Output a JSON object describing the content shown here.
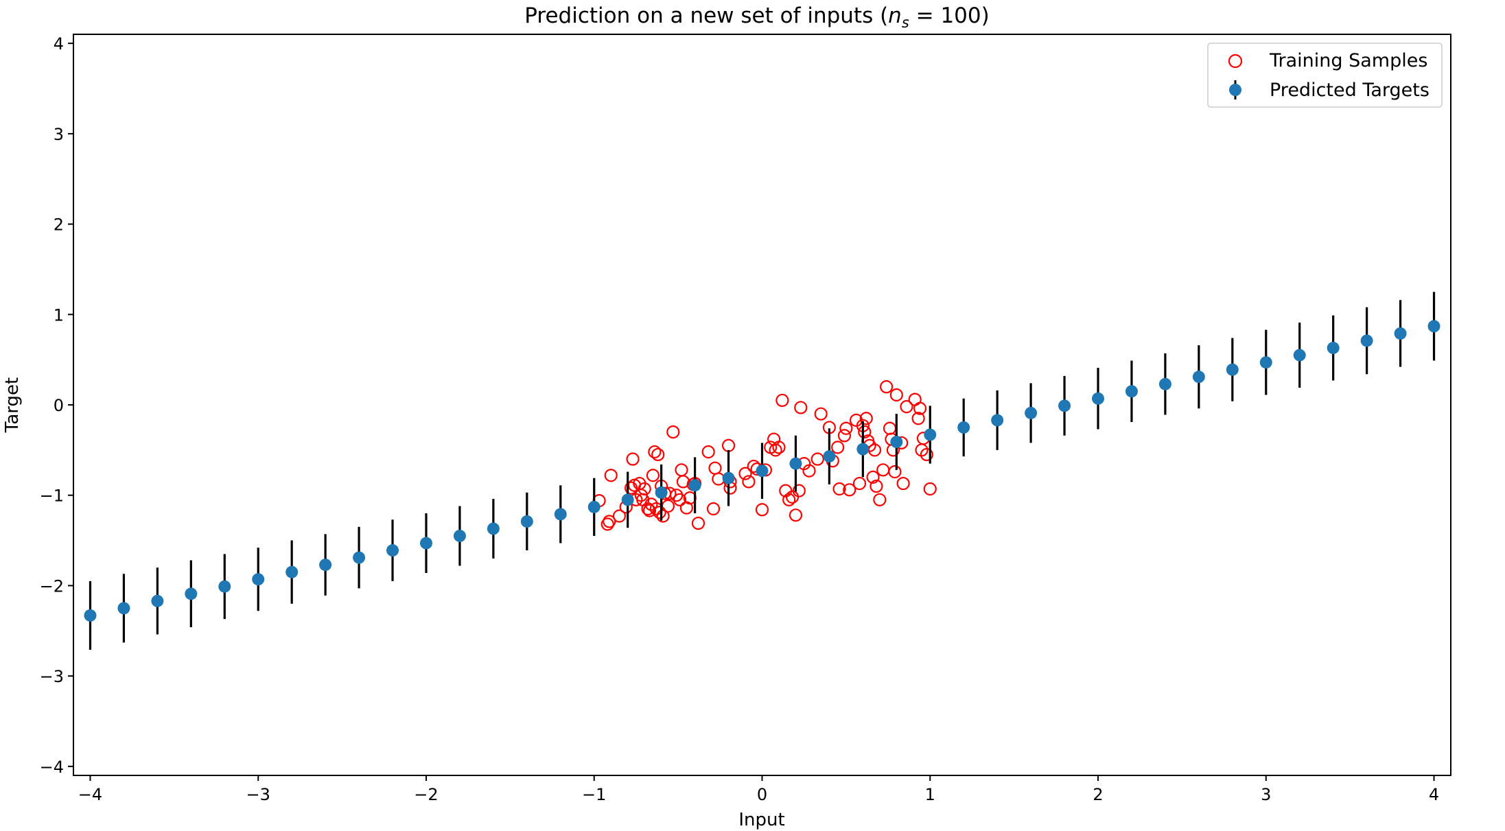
{
  "chart_data": {
    "type": "scatter",
    "title": "Prediction on a new set of inputs (",
    "title_math_var": "n",
    "title_math_sub": "s",
    "title_math_rest": " = 100)",
    "title_close": "",
    "xlabel": "Input",
    "ylabel": "Target",
    "xlim": [
      -4.1,
      4.1
    ],
    "ylim": [
      -4.1,
      4.1
    ],
    "x_ticks": [
      -4,
      -3,
      -2,
      -1,
      0,
      1,
      2,
      3,
      4
    ],
    "y_ticks": [
      -4,
      -3,
      -2,
      -1,
      0,
      1,
      2,
      3,
      4
    ],
    "x_tick_labels": [
      "−4",
      "−3",
      "−2",
      "−1",
      "0",
      "1",
      "2",
      "3",
      "4"
    ],
    "y_tick_labels": [
      "−4",
      "−3",
      "−2",
      "−1",
      "0",
      "1",
      "2",
      "3",
      "4"
    ],
    "grid": false,
    "legend_position": "top-right",
    "series": [
      {
        "name": "Training Samples",
        "marker": "open-circle",
        "color": "#ff0000",
        "x": [
          -0.91,
          -0.92,
          -0.9,
          -0.85,
          -0.81,
          -0.78,
          -0.77,
          -0.76,
          -0.75,
          -0.73,
          -0.72,
          -0.71,
          -0.7,
          -0.68,
          -0.67,
          -0.66,
          -0.65,
          -0.64,
          -0.62,
          -0.61,
          -0.6,
          -0.59,
          -0.58,
          -0.56,
          -0.55,
          -0.53,
          -0.51,
          -0.49,
          -0.48,
          -0.47,
          -0.45,
          -0.43,
          -0.41,
          -0.4,
          -0.38,
          -0.32,
          -0.29,
          -0.28,
          -0.26,
          -0.2,
          -0.19,
          -0.19,
          -0.1,
          -0.08,
          -0.05,
          -0.03,
          0.0,
          0.02,
          0.05,
          0.07,
          0.08,
          0.1,
          0.12,
          0.14,
          0.16,
          0.18,
          0.2,
          0.22,
          0.23,
          0.25,
          0.28,
          0.33,
          0.35,
          0.4,
          0.42,
          0.45,
          0.46,
          0.49,
          0.5,
          0.52,
          0.56,
          0.58,
          0.6,
          0.61,
          0.62,
          0.63,
          0.64,
          0.66,
          0.67,
          0.68,
          0.7,
          0.72,
          0.74,
          0.76,
          0.77,
          0.78,
          0.79,
          0.8,
          0.83,
          0.84,
          0.86,
          0.91,
          0.93,
          0.94,
          0.95,
          0.96,
          0.98,
          1.0,
          -0.97,
          -0.63
        ],
        "y": [
          -1.29,
          -1.32,
          -0.78,
          -1.23,
          -1.13,
          -0.92,
          -0.6,
          -0.89,
          -1.05,
          -0.87,
          -1.0,
          -1.05,
          -0.93,
          -1.15,
          -1.17,
          -1.1,
          -0.78,
          -0.52,
          -0.55,
          -1.19,
          -0.9,
          -1.23,
          -0.98,
          -1.12,
          -0.98,
          -0.3,
          -1.0,
          -1.05,
          -0.72,
          -0.85,
          -1.14,
          -1.03,
          -0.88,
          -0.87,
          -1.31,
          -0.52,
          -1.15,
          -0.7,
          -0.82,
          -0.45,
          -0.92,
          -0.85,
          -0.76,
          -0.85,
          -0.68,
          -0.71,
          -1.16,
          -0.72,
          -0.47,
          -0.38,
          -0.5,
          -0.47,
          0.05,
          -0.95,
          -1.05,
          -1.02,
          -1.22,
          -0.95,
          -0.03,
          -0.65,
          -0.73,
          -0.6,
          -0.1,
          -0.25,
          -0.62,
          -0.47,
          -0.93,
          -0.34,
          -0.26,
          -0.94,
          -0.17,
          -0.87,
          -0.23,
          -0.3,
          -0.15,
          -0.4,
          -0.45,
          -0.8,
          -0.5,
          -0.9,
          -1.05,
          -0.72,
          0.2,
          -0.26,
          -0.38,
          -0.5,
          -0.74,
          0.11,
          -0.42,
          -0.87,
          -0.02,
          0.06,
          -0.15,
          -0.04,
          -0.5,
          -0.37,
          -0.55,
          -0.93,
          -1.06,
          -1.15
        ]
      },
      {
        "name": "Predicted Targets",
        "marker": "filled-circle-errorbar",
        "color": "#1f77b4",
        "errorbar_color": "#000000",
        "x": [
          -4.0,
          -3.8,
          -3.6,
          -3.4,
          -3.2,
          -3.0,
          -2.8,
          -2.6,
          -2.4,
          -2.2,
          -2.0,
          -1.8,
          -1.6,
          -1.4,
          -1.2,
          -1.0,
          -0.8,
          -0.6,
          -0.4,
          -0.2,
          0.0,
          0.2,
          0.4,
          0.6,
          0.8,
          1.0,
          1.2,
          1.4,
          1.6,
          1.8,
          2.0,
          2.2,
          2.4,
          2.6,
          2.8,
          3.0,
          3.2,
          3.4,
          3.6,
          3.8,
          4.0
        ],
        "y": [
          -2.33,
          -2.25,
          -2.17,
          -2.09,
          -2.01,
          -1.93,
          -1.85,
          -1.77,
          -1.69,
          -1.61,
          -1.53,
          -1.45,
          -1.37,
          -1.29,
          -1.21,
          -1.13,
          -1.05,
          -0.97,
          -0.89,
          -0.81,
          -0.73,
          -0.65,
          -0.57,
          -0.49,
          -0.41,
          -0.33,
          -0.25,
          -0.17,
          -0.09,
          -0.01,
          0.07,
          0.15,
          0.23,
          0.31,
          0.39,
          0.47,
          0.55,
          0.63,
          0.71,
          0.79,
          0.87
        ],
        "yerr": [
          0.38,
          0.38,
          0.37,
          0.37,
          0.36,
          0.35,
          0.35,
          0.34,
          0.34,
          0.34,
          0.33,
          0.33,
          0.33,
          0.32,
          0.32,
          0.32,
          0.31,
          0.31,
          0.31,
          0.31,
          0.31,
          0.31,
          0.31,
          0.31,
          0.31,
          0.32,
          0.32,
          0.33,
          0.33,
          0.33,
          0.34,
          0.34,
          0.34,
          0.35,
          0.35,
          0.36,
          0.36,
          0.36,
          0.37,
          0.37,
          0.38
        ]
      }
    ]
  }
}
